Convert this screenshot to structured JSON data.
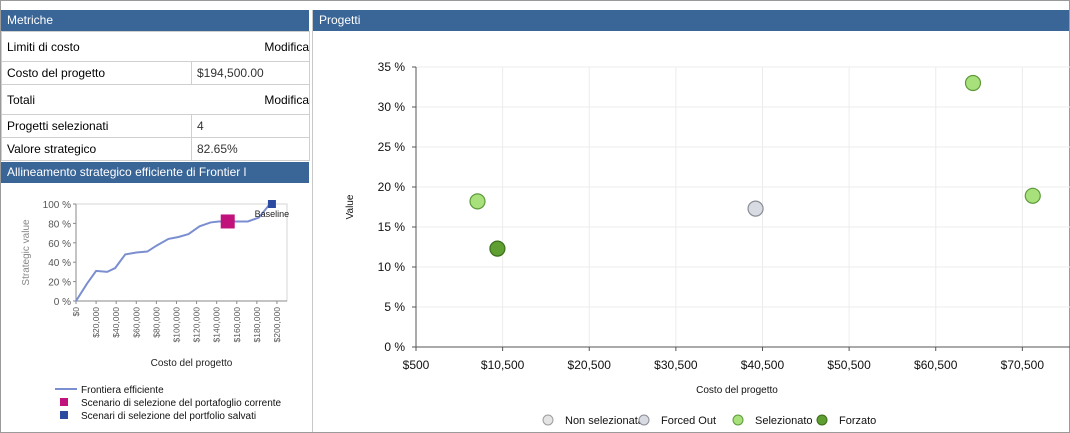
{
  "metrics_panel": {
    "title": "Metriche",
    "cost_limits": {
      "label": "Limiti di costo",
      "edit_label": "Modifica"
    },
    "project_cost": {
      "label": "Costo del progetto",
      "value": "$194,500.00"
    },
    "totals": {
      "label": "Totali",
      "edit_label": "Modifica"
    },
    "selected_projects": {
      "label": "Progetti selezionati",
      "value": "4"
    },
    "strategic_value": {
      "label": "Valore strategico",
      "value": "82.65%"
    }
  },
  "frontier_panel": {
    "title": "Allineamento strategico efficiente di Frontier l"
  },
  "projects_panel": {
    "title": "Progetti"
  },
  "chart_data": [
    {
      "type": "line",
      "title": "",
      "xlabel": "Costo del progetto",
      "ylabel": "Strategic value",
      "xlim": [
        0,
        210000
      ],
      "ylim": [
        0,
        100
      ],
      "x_ticks": [
        "$0",
        "$20,000",
        "$40,000",
        "$60,000",
        "$80,000",
        "$100,000",
        "$120,000",
        "$140,000",
        "$160,000",
        "$180,000",
        "$200,000"
      ],
      "y_ticks": [
        "0 %",
        "20 %",
        "40 %",
        "60 %",
        "80 %",
        "100 %"
      ],
      "series": [
        {
          "name": "Frontiera efficiente",
          "x": [
            0,
            11000,
            20000,
            31000,
            39000,
            49000,
            60000,
            71000,
            80000,
            92000,
            102000,
            112000,
            123000,
            134000,
            142000,
            151000,
            160000,
            171000,
            182000,
            193000
          ],
          "y": [
            0,
            18,
            31,
            30,
            34,
            48,
            50,
            51,
            57,
            64,
            66,
            69,
            77,
            81,
            82,
            82,
            82,
            82,
            86,
            100
          ]
        }
      ],
      "current_scenario": {
        "name": "Scenario di selezione del portafoglio corrente",
        "x": 151000,
        "y": 82,
        "color": "#c0127a"
      },
      "saved_scenarios": [
        {
          "name": "Scenari di selezione del portfolio salvati",
          "label": "Baseline",
          "x": 195000,
          "y": 100,
          "color": "#2c4aa0"
        }
      ],
      "legend": [
        {
          "label": "Frontiera efficiente",
          "shape": "line",
          "color": "#7b8ed0"
        },
        {
          "label": "Scenario di selezione del portafoglio corrente",
          "shape": "square",
          "color": "#c0127a"
        },
        {
          "label": "Scenari di selezione del portfolio salvati",
          "shape": "square",
          "color": "#2c4aa0"
        }
      ]
    },
    {
      "type": "scatter",
      "title": "",
      "xlabel": "Costo del progetto",
      "ylabel": "Value",
      "xlim": [
        500,
        76000
      ],
      "ylim": [
        0,
        35
      ],
      "x_ticks": [
        "$500",
        "$10,500",
        "$20,500",
        "$30,500",
        "$40,500",
        "$50,500",
        "$60,500",
        "$70,500"
      ],
      "y_ticks": [
        "0 %",
        "5 %",
        "10 %",
        "15 %",
        "20 %",
        "25 %",
        "30 %",
        "35 %"
      ],
      "grid": true,
      "legend_position": "bottom",
      "series": [
        {
          "name": "Non selezionata",
          "color": "#e4e4e4",
          "stroke": "#9c9c9c",
          "points": []
        },
        {
          "name": "Forced Out",
          "color": "#d9dbe3",
          "stroke": "#8a8c95",
          "points": [
            {
              "x": 39700,
              "y": 17.3
            }
          ]
        },
        {
          "name": "Selezionato",
          "color": "#a8e07c",
          "stroke": "#5d9a3a",
          "points": [
            {
              "x": 7600,
              "y": 18.2
            },
            {
              "x": 64800,
              "y": 33.0
            },
            {
              "x": 71700,
              "y": 18.9
            }
          ]
        },
        {
          "name": "Forzato",
          "color": "#5f9e31",
          "stroke": "#3a6e1a",
          "points": [
            {
              "x": 9900,
              "y": 12.3
            }
          ]
        }
      ]
    }
  ]
}
